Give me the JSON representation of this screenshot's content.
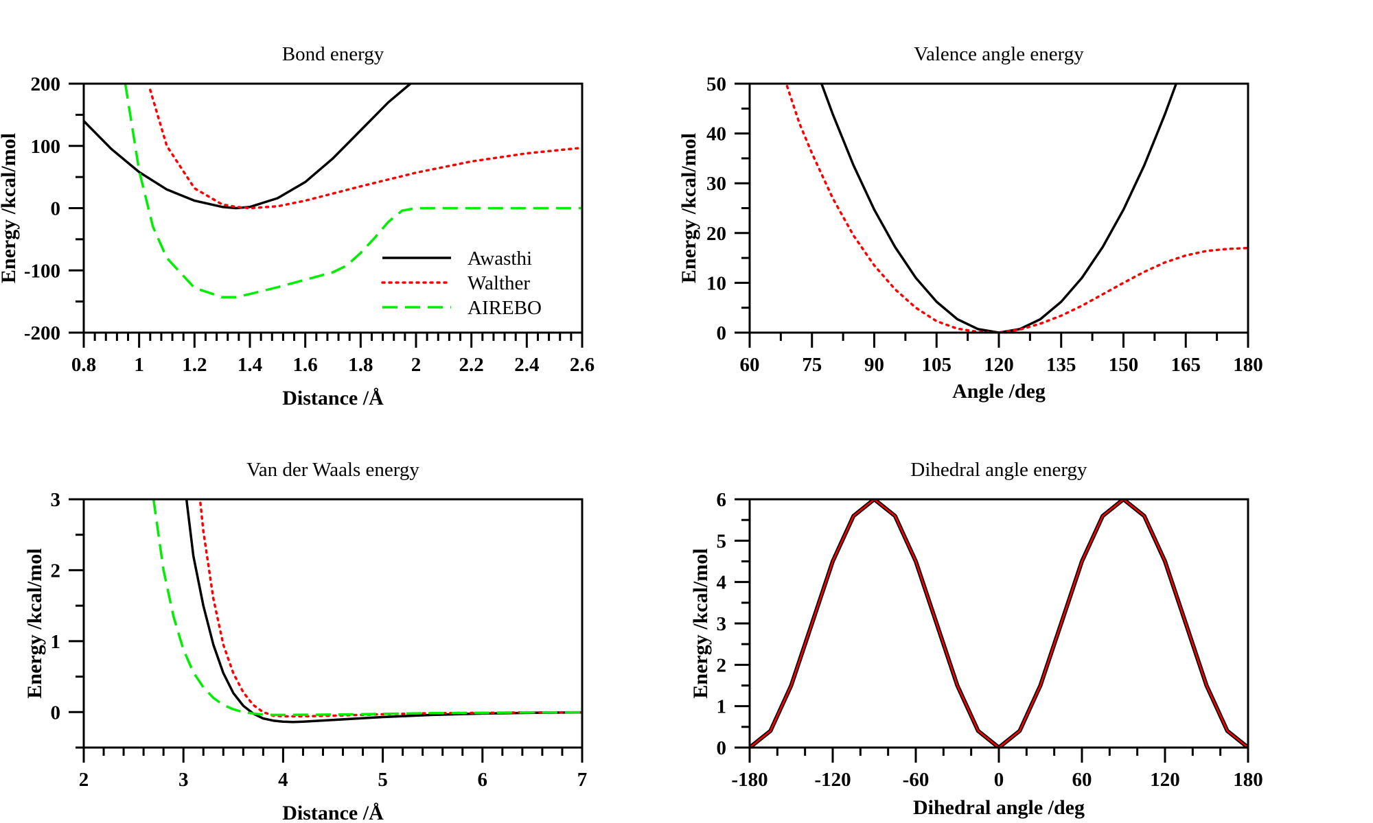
{
  "chart_data": [
    {
      "id": "bond",
      "type": "line",
      "title": "Bond energy",
      "xlabel": "Distance /Å",
      "ylabel": "Energy /kcal/mol",
      "xlim": [
        0.8,
        2.6
      ],
      "ylim": [
        -200,
        200
      ],
      "xticks": [
        0.8,
        1,
        1.2,
        1.4,
        1.6,
        1.8,
        2,
        2.2,
        2.4,
        2.6
      ],
      "xtick_labels": [
        "0.8",
        "1",
        "1.2",
        "1.4",
        "1.6",
        "1.8",
        "2",
        "2.2",
        "2.4",
        "2.6"
      ],
      "x_minor_step": 0.04,
      "yticks": [
        -200,
        -100,
        0,
        100,
        200
      ],
      "ytick_labels": [
        "-200",
        "-100",
        "0",
        "100",
        "200"
      ],
      "y_minor_step": 50,
      "legend": {
        "position": "lower-right",
        "entries": [
          "Awasthi",
          "Walther",
          "AIREBO"
        ]
      },
      "series": [
        {
          "name": "Awasthi",
          "color": "#000000",
          "style": "solid",
          "x": [
            0.8,
            0.9,
            1.0,
            1.1,
            1.2,
            1.3,
            1.35,
            1.4,
            1.5,
            1.6,
            1.7,
            1.8,
            1.9,
            1.98
          ],
          "y": [
            140,
            95,
            58,
            30,
            12,
            2,
            0,
            2,
            16,
            42,
            80,
            125,
            170,
            200
          ]
        },
        {
          "name": "Walther",
          "color": "#ff0000",
          "style": "dotted",
          "x": [
            1.04,
            1.1,
            1.2,
            1.3,
            1.35,
            1.4,
            1.5,
            1.6,
            1.8,
            2.0,
            2.2,
            2.4,
            2.6
          ],
          "y": [
            190,
            100,
            32,
            6,
            2,
            0,
            3,
            12,
            35,
            57,
            75,
            88,
            97
          ]
        },
        {
          "name": "AIREBO",
          "color": "#00ee00",
          "style": "dashed",
          "x": [
            0.95,
            1.0,
            1.05,
            1.1,
            1.2,
            1.3,
            1.35,
            1.4,
            1.5,
            1.6,
            1.7,
            1.75,
            1.8,
            1.85,
            1.9,
            1.95,
            2.0,
            2.2,
            2.4,
            2.6
          ],
          "y": [
            200,
            60,
            -30,
            -80,
            -128,
            -143,
            -143,
            -138,
            -127,
            -115,
            -103,
            -92,
            -72,
            -48,
            -22,
            -4,
            0,
            0,
            0,
            0
          ]
        }
      ]
    },
    {
      "id": "valence",
      "type": "line",
      "title": "Valence angle energy",
      "xlabel": "Angle /deg",
      "ylabel": "Energy /kcal/mol",
      "xlim": [
        60,
        180
      ],
      "ylim": [
        0,
        50
      ],
      "xticks": [
        60,
        75,
        90,
        105,
        120,
        135,
        150,
        165,
        180
      ],
      "xtick_labels": [
        "60",
        "75",
        "90",
        "105",
        "120",
        "135",
        "150",
        "165",
        "180"
      ],
      "x_minor_step": 7.5,
      "yticks": [
        0,
        10,
        20,
        30,
        40,
        50
      ],
      "ytick_labels": [
        "0",
        "10",
        "20",
        "30",
        "40",
        "50"
      ],
      "y_minor_step": 5,
      "series": [
        {
          "name": "Awasthi",
          "color": "#000000",
          "style": "solid",
          "x": [
            77.3,
            80,
            85,
            90,
            95,
            100,
            105,
            110,
            115,
            120,
            125,
            130,
            135,
            140,
            145,
            150,
            155,
            160,
            162.7
          ],
          "y": [
            50,
            43.9,
            33.6,
            24.7,
            17.2,
            11,
            6.2,
            2.7,
            0.7,
            0,
            0.7,
            2.7,
            6.2,
            11,
            17.2,
            24.7,
            33.6,
            43.9,
            50
          ]
        },
        {
          "name": "Walther",
          "color": "#ff0000",
          "style": "dotted",
          "x": [
            69,
            72,
            75,
            80,
            85,
            90,
            95,
            100,
            105,
            110,
            115,
            120,
            125,
            130,
            135,
            140,
            145,
            150,
            155,
            160,
            165,
            170,
            175,
            180
          ],
          "y": [
            49.5,
            42,
            36,
            27,
            19.5,
            13.5,
            8.7,
            5,
            2.3,
            0.8,
            0.15,
            0,
            0.6,
            1.8,
            3.4,
            5.4,
            7.7,
            10,
            12.2,
            14.1,
            15.5,
            16.4,
            16.8,
            17
          ]
        }
      ]
    },
    {
      "id": "vdw",
      "type": "line",
      "title": "Van der Waals energy",
      "xlabel": "Distance /Å",
      "ylabel": "Energy /kcal/mol",
      "xlim": [
        2,
        7
      ],
      "ylim": [
        -0.5,
        3
      ],
      "xticks": [
        2,
        3,
        4,
        5,
        6,
        7
      ],
      "xtick_labels": [
        "2",
        "3",
        "4",
        "5",
        "6",
        "7"
      ],
      "x_minor_step": 0.2,
      "yticks": [
        0,
        1,
        2,
        3
      ],
      "ytick_labels": [
        "0",
        "1",
        "2",
        "3"
      ],
      "y_minor_step": 0.5,
      "series": [
        {
          "name": "Awasthi",
          "color": "#000000",
          "style": "solid",
          "x": [
            3.03,
            3.1,
            3.2,
            3.3,
            3.4,
            3.5,
            3.6,
            3.7,
            3.8,
            3.9,
            4.0,
            4.1,
            4.2,
            4.5,
            5.0,
            5.5,
            6.0,
            6.5,
            7.0
          ],
          "y": [
            3,
            2.2,
            1.5,
            0.95,
            0.55,
            0.27,
            0.09,
            -0.02,
            -0.09,
            -0.12,
            -0.135,
            -0.14,
            -0.135,
            -0.11,
            -0.07,
            -0.04,
            -0.02,
            -0.01,
            -0.005
          ]
        },
        {
          "name": "Walther",
          "color": "#ff0000",
          "style": "dotted",
          "x": [
            3.17,
            3.2,
            3.3,
            3.4,
            3.5,
            3.6,
            3.7,
            3.8,
            3.9,
            4.0,
            4.2,
            4.5,
            5.0,
            5.5,
            6.0,
            6.5,
            7.0
          ],
          "y": [
            2.95,
            2.55,
            1.6,
            0.95,
            0.55,
            0.28,
            0.1,
            0.0,
            -0.05,
            -0.06,
            -0.06,
            -0.05,
            -0.03,
            -0.015,
            -0.01,
            -0.005,
            -0.003
          ]
        },
        {
          "name": "AIREBO",
          "color": "#00ee00",
          "style": "dashed",
          "x": [
            2.7,
            2.75,
            2.8,
            2.9,
            3.0,
            3.1,
            3.2,
            3.3,
            3.4,
            3.5,
            3.6,
            3.7,
            3.8,
            3.9,
            4.0,
            4.5,
            5.0,
            5.5,
            6.0,
            6.5,
            7.0
          ],
          "y": [
            3,
            2.5,
            2.0,
            1.35,
            0.88,
            0.56,
            0.35,
            0.2,
            0.1,
            0.04,
            0.0,
            -0.02,
            -0.035,
            -0.04,
            -0.04,
            -0.035,
            -0.025,
            -0.015,
            -0.01,
            -0.005,
            -0.002
          ]
        }
      ]
    },
    {
      "id": "dihedral",
      "type": "line",
      "title": "Dihedral angle energy",
      "xlabel": "Dihedral angle /deg",
      "ylabel": "Energy /kcal/mol",
      "xlim": [
        -180,
        180
      ],
      "ylim": [
        0,
        6
      ],
      "xticks": [
        -180,
        -120,
        -60,
        0,
        60,
        120,
        180
      ],
      "xtick_labels": [
        "-180",
        "-120",
        "-60",
        "0",
        "60",
        "120",
        "180"
      ],
      "x_minor_step": 20,
      "yticks": [
        0,
        1,
        2,
        3,
        4,
        5,
        6
      ],
      "ytick_labels": [
        "0",
        "1",
        "2",
        "3",
        "4",
        "5",
        "6"
      ],
      "y_minor_step": 0.5,
      "series": [
        {
          "name": "Awasthi",
          "color": "#000000",
          "style": "solid",
          "line_width": 6,
          "x": [
            -180,
            -165,
            -150,
            -135,
            -120,
            -105,
            -90,
            -75,
            -60,
            -45,
            -30,
            -15,
            0,
            15,
            30,
            45,
            60,
            75,
            90,
            105,
            120,
            135,
            150,
            165,
            180
          ],
          "y": [
            0,
            0.402,
            1.5,
            3,
            4.5,
            5.598,
            6,
            5.598,
            4.5,
            3,
            1.5,
            0.402,
            0,
            0.402,
            1.5,
            3,
            4.5,
            5.598,
            6,
            5.598,
            4.5,
            3,
            1.5,
            0.402,
            0
          ]
        },
        {
          "name": "Walther",
          "color": "#ff0000",
          "style": "solid",
          "line_width": 2.5,
          "x": [
            -180,
            -165,
            -150,
            -135,
            -120,
            -105,
            -90,
            -75,
            -60,
            -45,
            -30,
            -15,
            0,
            15,
            30,
            45,
            60,
            75,
            90,
            105,
            120,
            135,
            150,
            165,
            180
          ],
          "y": [
            0,
            0.402,
            1.5,
            3,
            4.5,
            5.598,
            6,
            5.598,
            4.5,
            3,
            1.5,
            0.402,
            0,
            0.402,
            1.5,
            3,
            4.5,
            5.598,
            6,
            5.598,
            4.5,
            3,
            1.5,
            0.402,
            0
          ]
        }
      ]
    }
  ]
}
